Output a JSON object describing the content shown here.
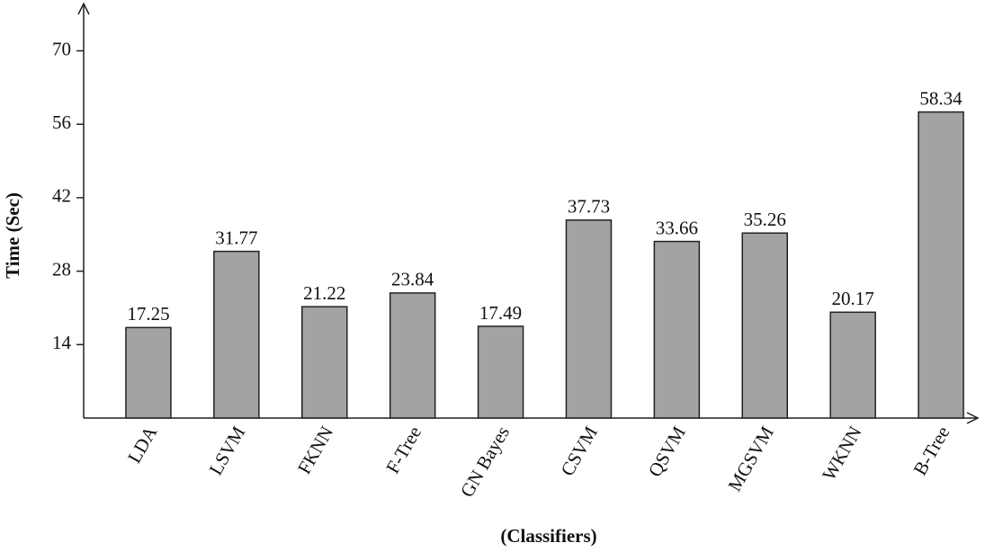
{
  "chart_data": {
    "type": "bar",
    "x_label": "(Classifiers)",
    "y_label": "Time (Sec)",
    "categories": [
      "LDA",
      "LSVM",
      "FKNN",
      "F-Tree",
      "GN Bayes",
      "CSVM",
      "QSVM",
      "MGSVM",
      "WKNN",
      "B-Tree"
    ],
    "values": [
      17.25,
      31.77,
      21.22,
      23.84,
      17.49,
      37.73,
      33.66,
      35.26,
      20.17,
      58.34
    ],
    "color": "#a3a3a3",
    "ylim": [
      0,
      79
    ],
    "yticks": [
      14,
      28,
      42,
      56,
      70
    ],
    "grid": false
  }
}
